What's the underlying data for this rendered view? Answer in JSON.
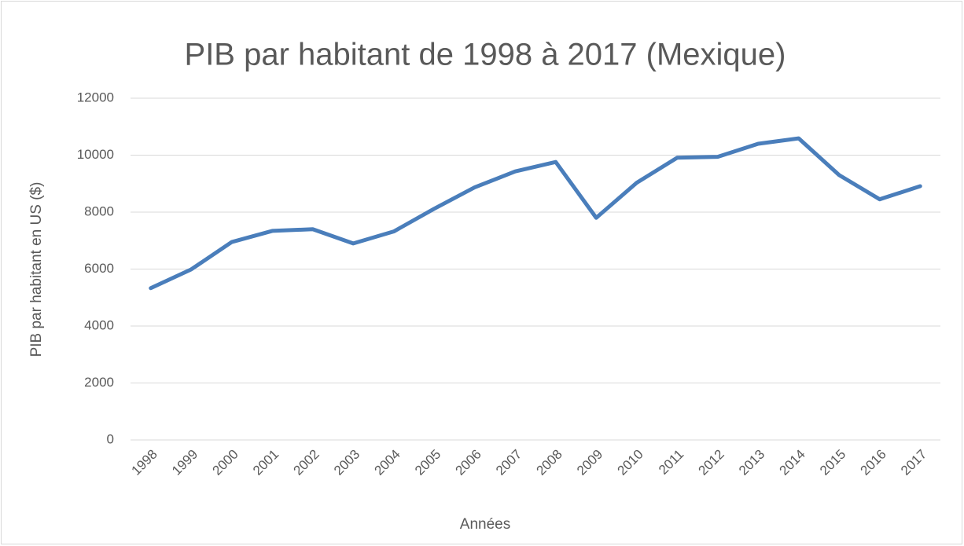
{
  "chart_data": {
    "type": "line",
    "title": "PIB par habitant de 1998 à 2017 (Mexique)",
    "x_label": "Années",
    "y_label": "PIB par habitant en US ($)",
    "categories": [
      "1998",
      "1999",
      "2000",
      "2001",
      "2002",
      "2003",
      "2004",
      "2005",
      "2006",
      "2007",
      "2008",
      "2009",
      "2010",
      "2011",
      "2012",
      "2013",
      "2014",
      "2015",
      "2016",
      "2017"
    ],
    "values": [
      5330,
      5990,
      6950,
      7340,
      7400,
      6900,
      7320,
      8120,
      8870,
      9430,
      9760,
      7800,
      9030,
      9910,
      9940,
      10400,
      10590,
      9300,
      8450,
      8910
    ],
    "color": "#4a7ebb",
    "ylim": [
      0,
      12000
    ],
    "yticks": [
      0,
      2000,
      4000,
      6000,
      8000,
      10000,
      12000
    ],
    "grid": true
  }
}
